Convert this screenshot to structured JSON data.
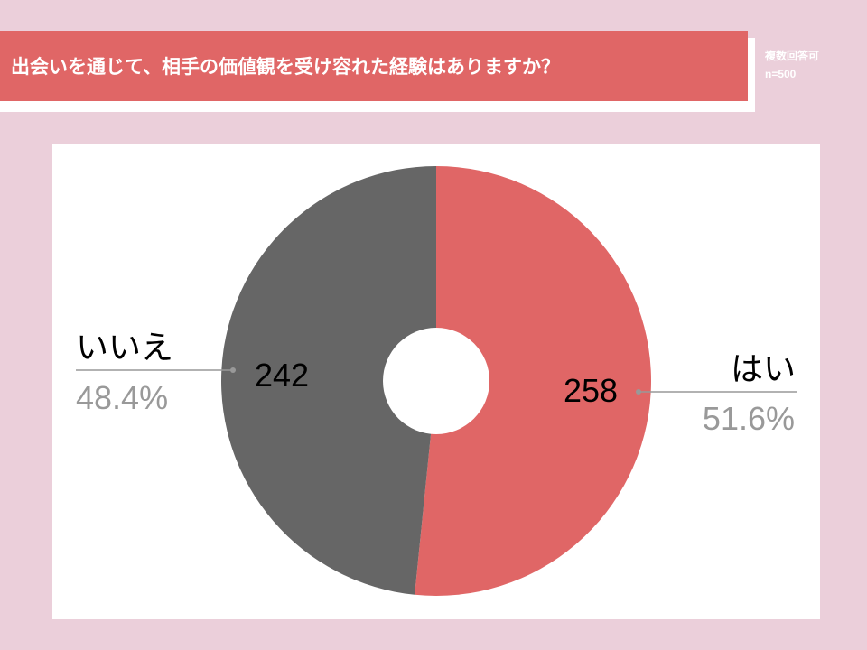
{
  "header": {
    "title": "出会いを通じて、相手の価値観を受け容れた経験はありますか？",
    "note_line1": "複数回答可",
    "note_line2": "n=500"
  },
  "colors": {
    "background": "#ebcfda",
    "banner": "#e06666",
    "yes": "#e06666",
    "no": "#666666",
    "percent_text": "#999999"
  },
  "chart_data": {
    "type": "pie",
    "donut": true,
    "total": 500,
    "slices": [
      {
        "label": "はい",
        "value": 258,
        "value_label": "258",
        "percent_label": "51.6%",
        "color": "#e06666"
      },
      {
        "label": "いいえ",
        "value": 242,
        "value_label": "242",
        "percent_label": "48.4%",
        "color": "#666666"
      }
    ]
  }
}
